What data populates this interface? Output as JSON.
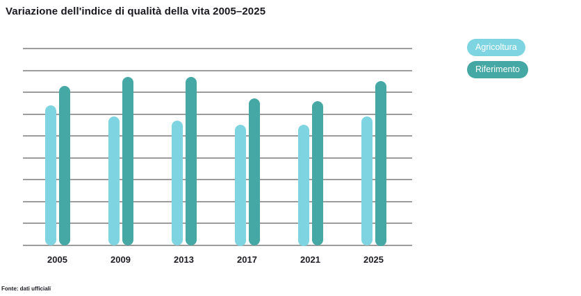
{
  "title": "Variazione dell'indice di qualità della vita 2005–2025",
  "footer": {
    "source": "Fonte: dati ufficiali"
  },
  "legend": {
    "items": [
      {
        "label": "Agricoltura",
        "color": "#7ed5e1"
      },
      {
        "label": "Riferimento",
        "color": "#45a8a4"
      }
    ]
  },
  "colors": {
    "background": "#ffffff",
    "gridline": "#9c9c9c",
    "title_text": "#18181e",
    "axis_label_text": "#1d1d24",
    "legend_text": "#ffffff",
    "series_agricoltura": "#7ed5e1",
    "series_riferimento": "#45a8a4"
  },
  "chart_data": {
    "type": "bar",
    "title": "Variazione dell'indice di qualità della vita 2005–2025",
    "categories": [
      "2005",
      "2009",
      "2013",
      "2017",
      "2021",
      "2025"
    ],
    "series": [
      {
        "name": "Agricoltura",
        "color": "#7ed5e1",
        "values": [
          64,
          59,
          57,
          55,
          55,
          59
        ]
      },
      {
        "name": "Riferimento",
        "color": "#45a8a4",
        "values": [
          73,
          77,
          77,
          67,
          66,
          75
        ]
      }
    ],
    "xlabel": "",
    "ylabel": "",
    "ylim": [
      0,
      90
    ],
    "grid_step": 10,
    "grid": "horizontal",
    "y_axis_tick_labels_visible": false,
    "legend_position": "top-right",
    "bar_shape": "rounded-stadium"
  }
}
